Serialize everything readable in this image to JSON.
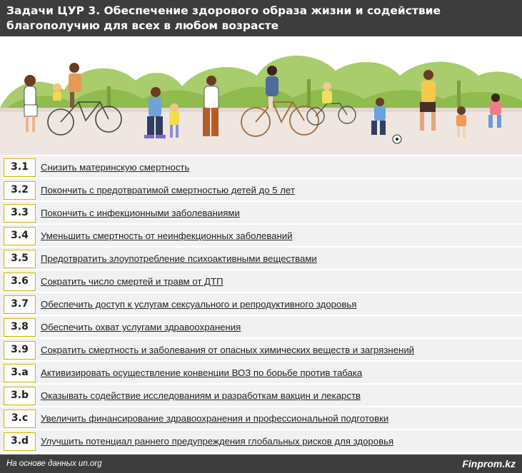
{
  "header": {
    "title": "Задачи ЦУР 3. Обеспечение здорового образа жизни и содействие благополучию для всех в любом возрасте"
  },
  "colors": {
    "header_bg": "#3d3d3d",
    "badge_border": "#d9b500",
    "row_bg": "#f1f1f1"
  },
  "illustration": {
    "icon": "park-people-illustration"
  },
  "goals": [
    {
      "code": "3.1",
      "text": "Снизить материнскую смертность"
    },
    {
      "code": "3.2",
      "text": "Покончить с предотвратимой смертностью детей до 5 лет"
    },
    {
      "code": "3.3",
      "text": "Покончить с инфекционными заболеваниями"
    },
    {
      "code": "3.4",
      "text": "Уменьшить смертность от неинфекционных заболеваний"
    },
    {
      "code": "3.5",
      "text": "Предотвратить злоупотребление психоактивными веществами"
    },
    {
      "code": "3.6",
      "text": "Сократить число смертей и травм от ДТП"
    },
    {
      "code": "3.7",
      "text": "Обеспечить доступ к услугам сексуального и репродуктивного здоровья"
    },
    {
      "code": "3.8",
      "text": "Обеспечить охват услугами здравоохранения"
    },
    {
      "code": "3.9",
      "text": "Сократить смертность и заболевания от опасных химических веществ и загрязнений"
    },
    {
      "code": "3.a",
      "text": "Активизировать осуществление конвенции ВОЗ по борьбе против табака"
    },
    {
      "code": "3.b",
      "text": "Оказывать содействие исследованиям и разработкам вакцин и лекарств"
    },
    {
      "code": "3.c",
      "text": "Увеличить финансирование здравоохранения и профессиональной подготовки"
    },
    {
      "code": "3.d",
      "text": "Улучшить потенциал раннего предупреждения глобальных рисков для здоровья"
    }
  ],
  "footer": {
    "source": "На основе данных un.org",
    "brand": "Finprom.kz"
  }
}
